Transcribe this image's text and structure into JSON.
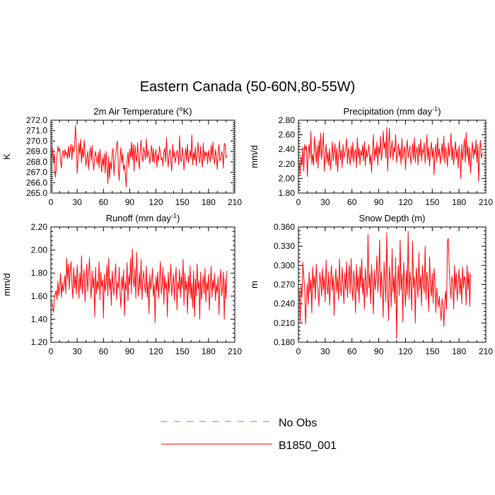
{
  "figure": {
    "title": "Eastern Canada (50-60N,80-55W)"
  },
  "legend": {
    "entries": [
      {
        "label": "No Obs",
        "color": "#7777ff",
        "style": "dashed"
      },
      {
        "label": "B1850_001",
        "color": "#ff0000",
        "style": "solid"
      }
    ]
  },
  "chart_data": [
    {
      "type": "line",
      "title": "2m Air Temperature (°K)",
      "title_main": "2m Air Temperature (",
      "title_sup": "o",
      "title_tail": "K)",
      "xlabel": "",
      "ylabel": "K",
      "xlim": [
        0,
        210
      ],
      "ylim": [
        265.0,
        272.0
      ],
      "xticks": [
        0,
        30,
        60,
        90,
        120,
        150,
        180,
        210
      ],
      "yticks": [
        265.0,
        266.0,
        267.0,
        268.0,
        269.0,
        270.0,
        271.0,
        272.0
      ],
      "ydecimals": 1,
      "series": [
        {
          "name": "B1850_001",
          "color": "#ff0000",
          "x_start": 1,
          "values": [
            268.4,
            269.3,
            267.9,
            268.8,
            266.5,
            267.2,
            268.6,
            269.5,
            269.0,
            269.3,
            268.1,
            267.4,
            268.9,
            269.1,
            268.4,
            269.2,
            268.7,
            268.9,
            268.3,
            269.5,
            268.4,
            269.1,
            269.7,
            268.2,
            269.6,
            268.9,
            269.4,
            271.5,
            269.9,
            266.9,
            268.3,
            269.8,
            268.7,
            270.2,
            267.9,
            269.3,
            268.4,
            270.1,
            268.8,
            267.6,
            268.3,
            269.0,
            267.3,
            268.6,
            269.4,
            268.1,
            269.6,
            268.0,
            267.2,
            268.5,
            269.0,
            268.3,
            267.8,
            268.9,
            267.4,
            269.2,
            268.1,
            267.0,
            268.4,
            267.6,
            268.8,
            266.9,
            269.0,
            267.8,
            265.9,
            268.5,
            266.4,
            268.0,
            267.3,
            268.9,
            269.3,
            266.7,
            268.1,
            268.6,
            269.6,
            270.0,
            267.4,
            266.2,
            268.3,
            269.4,
            267.9,
            268.8,
            267.2,
            267.7,
            266.8,
            265.6,
            268.2,
            268.9,
            267.5,
            269.2,
            268.4,
            269.9,
            268.2,
            269.7,
            267.1,
            269.6,
            268.5,
            268.0,
            269.8,
            268.3,
            267.3,
            269.0,
            270.1,
            268.7,
            268.0,
            269.4,
            268.9,
            268.2,
            270.2,
            268.4,
            269.1,
            268.6,
            267.8,
            268.9,
            269.6,
            268.0,
            269.3,
            267.9,
            268.6,
            269.2,
            267.5,
            268.7,
            268.1,
            269.5,
            268.9,
            268.2,
            268.4,
            267.6,
            268.9,
            269.3,
            268.0,
            270.3,
            268.5,
            267.5,
            268.8,
            269.2,
            268.1,
            267.1,
            269.7,
            268.4,
            269.0,
            267.9,
            268.5,
            269.1,
            268.8,
            267.7,
            270.5,
            268.3,
            268.0,
            269.4,
            268.6,
            267.2,
            268.4,
            269.3,
            268.1,
            269.7,
            267.9,
            268.5,
            269.1,
            268.3,
            270.6,
            267.7,
            268.9,
            268.2,
            269.4,
            267.6,
            268.7,
            269.9,
            268.4,
            267.9,
            269.5,
            268.2,
            267.5,
            269.8,
            268.1,
            269.0,
            268.6,
            268.9,
            267.8,
            269.1,
            268.5,
            268.0,
            269.6,
            268.3,
            269.9,
            268.4,
            267.8,
            269.2,
            268.5,
            267.3,
            268.8,
            269.7,
            268.1,
            268.3,
            269.0,
            268.7,
            267.4,
            269.8,
            269.6,
            268.4,
            268.6
          ]
        }
      ]
    },
    {
      "type": "line",
      "title": "Precipitation (mm day-1)",
      "title_main": "Precipitation (mm day",
      "title_sup": "-1",
      "title_tail": ")",
      "xlabel": "",
      "ylabel": "mm/d",
      "xlim": [
        0,
        210
      ],
      "ylim": [
        1.8,
        2.8
      ],
      "xticks": [
        0,
        30,
        60,
        90,
        120,
        150,
        180,
        210
      ],
      "yticks": [
        1.8,
        2.0,
        2.2,
        2.4,
        2.6,
        2.8
      ],
      "ydecimals": 2,
      "series": [
        {
          "name": "B1850_001",
          "color": "#ff0000",
          "x_start": 1,
          "values": [
            2.22,
            2.05,
            2.3,
            2.18,
            2.43,
            2.1,
            2.47,
            2.39,
            2.45,
            2.03,
            2.35,
            2.47,
            2.28,
            2.65,
            2.2,
            2.33,
            2.18,
            2.57,
            2.4,
            2.22,
            2.45,
            2.14,
            2.52,
            2.3,
            2.62,
            2.26,
            2.43,
            2.63,
            2.1,
            2.32,
            2.47,
            2.22,
            2.36,
            2.18,
            2.41,
            2.12,
            2.28,
            2.5,
            2.24,
            2.35,
            2.48,
            2.18,
            2.42,
            2.09,
            2.33,
            2.52,
            2.26,
            2.39,
            2.15,
            2.47,
            2.28,
            2.34,
            2.43,
            2.55,
            2.2,
            2.42,
            2.31,
            2.18,
            2.45,
            2.27,
            2.5,
            2.22,
            2.36,
            2.4,
            2.15,
            2.56,
            2.29,
            2.42,
            2.19,
            2.38,
            2.31,
            2.46,
            2.24,
            2.51,
            2.17,
            2.4,
            2.29,
            2.36,
            2.47,
            2.2,
            2.33,
            2.08,
            2.39,
            2.6,
            2.24,
            2.42,
            2.3,
            2.5,
            2.18,
            2.44,
            2.33,
            2.58,
            2.25,
            2.37,
            2.65,
            2.41,
            2.5,
            2.28,
            2.7,
            2.1,
            2.45,
            2.69,
            2.28,
            2.4,
            2.52,
            2.25,
            2.43,
            2.36,
            2.6,
            2.22,
            2.34,
            2.48,
            2.3,
            2.41,
            2.19,
            2.55,
            2.27,
            2.36,
            2.44,
            2.12,
            2.39,
            2.53,
            2.28,
            2.37,
            2.45,
            2.2,
            2.32,
            2.48,
            2.26,
            2.56,
            2.22,
            2.38,
            2.43,
            2.18,
            2.47,
            2.31,
            2.54,
            2.24,
            2.4,
            2.35,
            2.49,
            2.21,
            2.36,
            2.6,
            2.26,
            2.43,
            2.17,
            2.38,
            2.5,
            2.29,
            2.42,
            2.05,
            2.36,
            2.47,
            2.23,
            2.56,
            2.3,
            2.41,
            2.2,
            2.34,
            2.48,
            2.27,
            2.58,
            2.21,
            2.43,
            2.35,
            2.16,
            2.49,
            2.3,
            2.38,
            2.62,
            2.25,
            2.44,
            2.19,
            2.37,
            2.51,
            2.28,
            2.4,
            2.14,
            2.45,
            2.33,
            2.0,
            2.47,
            2.25,
            2.39,
            2.55,
            2.22,
            2.63,
            2.3,
            2.45,
            2.18,
            2.42,
            2.07,
            2.36,
            2.5,
            2.27,
            2.41,
            2.33,
            2.53,
            2.22,
            2.47,
            1.96,
            2.38,
            2.52,
            2.28,
            2.34,
            2.35
          ]
        }
      ]
    },
    {
      "type": "line",
      "title": "Runoff (mm day-1)",
      "title_main": "Runoff (mm day",
      "title_sup": "-1",
      "title_tail": ")",
      "xlabel": "",
      "ylabel": "mm/d",
      "xlim": [
        0,
        210
      ],
      "ylim": [
        1.2,
        2.2
      ],
      "xticks": [
        0,
        30,
        60,
        90,
        120,
        150,
        180,
        210
      ],
      "yticks": [
        1.2,
        1.4,
        1.6,
        1.8,
        2.0,
        2.2
      ],
      "ydecimals": 2,
      "series": [
        {
          "name": "B1850_001",
          "color": "#ff0000",
          "x_start": 1,
          "values": [
            1.55,
            1.5,
            1.46,
            1.58,
            1.62,
            1.65,
            1.57,
            1.73,
            1.61,
            1.68,
            1.8,
            1.59,
            1.72,
            1.64,
            1.7,
            1.78,
            1.62,
            1.93,
            1.75,
            1.88,
            1.66,
            1.82,
            1.9,
            1.7,
            1.58,
            1.85,
            1.67,
            1.78,
            1.62,
            1.87,
            1.73,
            1.58,
            1.8,
            1.66,
            1.95,
            1.62,
            1.75,
            1.83,
            1.55,
            1.72,
            1.88,
            1.64,
            1.78,
            1.93,
            1.7,
            1.58,
            1.82,
            1.67,
            1.76,
            1.42,
            1.85,
            1.62,
            1.73,
            1.66,
            1.9,
            1.57,
            1.81,
            1.68,
            1.74,
            1.41,
            1.79,
            1.64,
            1.71,
            1.87,
            1.6,
            1.93,
            1.66,
            1.75,
            1.52,
            1.82,
            1.69,
            1.61,
            1.78,
            1.88,
            1.57,
            1.72,
            1.67,
            1.85,
            1.62,
            1.5,
            1.77,
            1.66,
            1.83,
            1.43,
            1.72,
            1.65,
            1.89,
            1.56,
            1.78,
            1.7,
            1.93,
            1.62,
            2.01,
            1.75,
            1.68,
            1.84,
            1.58,
            1.98,
            1.71,
            1.6,
            1.8,
            1.66,
            1.92,
            1.57,
            1.74,
            1.82,
            1.69,
            1.63,
            1.86,
            1.59,
            1.72,
            1.45,
            1.79,
            1.66,
            1.73,
            1.84,
            1.6,
            1.7,
            1.37,
            1.77,
            1.65,
            1.81,
            1.58,
            1.74,
            1.9,
            1.62,
            1.69,
            1.85,
            1.53,
            1.78,
            1.66,
            1.72,
            1.42,
            1.81,
            1.63,
            1.75,
            1.88,
            1.6,
            1.7,
            1.79,
            1.56,
            1.74,
            1.85,
            1.48,
            1.72,
            1.66,
            1.83,
            1.59,
            1.77,
            1.67,
            1.92,
            1.52,
            1.8,
            1.65,
            1.73,
            1.45,
            1.78,
            1.62,
            1.86,
            1.58,
            1.71,
            1.5,
            1.82,
            1.42,
            1.75,
            1.6,
            1.88,
            1.66,
            1.73,
            1.4,
            1.81,
            1.57,
            1.69,
            1.78,
            1.62,
            1.84,
            1.55,
            1.72,
            1.65,
            1.79,
            1.48,
            1.68,
            1.86,
            1.59,
            1.74,
            1.66,
            1.8,
            1.56,
            1.7,
            1.63,
            1.77,
            1.44,
            1.72,
            1.83,
            1.6,
            1.67,
            1.81,
            1.4,
            1.75,
            1.58,
            1.82
          ]
        }
      ]
    },
    {
      "type": "line",
      "title": "Snow Depth (m)",
      "title_main": "Snow Depth (m)",
      "title_sup": "",
      "title_tail": "",
      "xlabel": "",
      "ylabel": "m",
      "xlim": [
        0,
        210
      ],
      "ylim": [
        0.18,
        0.36
      ],
      "xticks": [
        0,
        30,
        60,
        90,
        120,
        150,
        180,
        210
      ],
      "yticks": [
        0.18,
        0.21,
        0.24,
        0.27,
        0.3,
        0.33,
        0.36
      ],
      "ydecimals": 3,
      "series": [
        {
          "name": "B1850_001",
          "color": "#ff0000",
          "x_start": 1,
          "values": [
            0.262,
            0.21,
            0.268,
            0.25,
            0.305,
            0.282,
            0.265,
            0.208,
            0.248,
            0.271,
            0.239,
            0.29,
            0.258,
            0.278,
            0.226,
            0.298,
            0.265,
            0.283,
            0.247,
            0.302,
            0.271,
            0.26,
            0.236,
            0.289,
            0.274,
            0.252,
            0.296,
            0.262,
            0.281,
            0.243,
            0.308,
            0.268,
            0.255,
            0.29,
            0.238,
            0.276,
            0.3,
            0.261,
            0.284,
            0.222,
            0.272,
            0.295,
            0.258,
            0.281,
            0.246,
            0.31,
            0.265,
            0.253,
            0.297,
            0.27,
            0.24,
            0.288,
            0.262,
            0.306,
            0.25,
            0.279,
            0.3,
            0.256,
            0.311,
            0.268,
            0.245,
            0.292,
            0.273,
            0.226,
            0.302,
            0.26,
            0.284,
            0.242,
            0.298,
            0.266,
            0.31,
            0.255,
            0.28,
            0.232,
            0.296,
            0.271,
            0.251,
            0.349,
            0.265,
            0.287,
            0.24,
            0.301,
            0.27,
            0.224,
            0.293,
            0.262,
            0.279,
            0.315,
            0.258,
            0.283,
            0.34,
            0.25,
            0.29,
            0.267,
            0.219,
            0.305,
            0.275,
            0.243,
            0.351,
            0.262,
            0.214,
            0.298,
            0.276,
            0.235,
            0.326,
            0.258,
            0.283,
            0.241,
            0.312,
            0.186,
            0.27,
            0.3,
            0.253,
            0.34,
            0.262,
            0.287,
            0.212,
            0.305,
            0.268,
            0.236,
            0.293,
            0.254,
            0.353,
            0.247,
            0.29,
            0.273,
            0.23,
            0.338,
            0.265,
            0.282,
            0.21,
            0.296,
            0.276,
            0.25,
            0.32,
            0.262,
            0.284,
            0.237,
            0.3,
            0.27,
            0.257,
            0.33,
            0.246,
            0.289,
            0.275,
            0.228,
            0.313,
            0.269,
            0.252,
            0.288,
            0.241,
            0.295,
            0.277,
            0.226,
            0.265,
            0.246,
            0.236,
            0.252,
            0.229,
            0.214,
            0.248,
            0.238,
            0.205,
            0.242,
            0.26,
            0.231,
            0.339,
            0.342,
            0.296,
            0.265,
            0.248,
            0.283,
            0.274,
            0.232,
            0.3,
            0.262,
            0.288,
            0.245,
            0.271,
            0.294,
            0.255,
            0.28,
            0.24,
            0.297,
            0.265,
            0.283,
            0.276,
            0.238,
            0.3,
            0.262,
            0.29,
            0.236,
            0.287
          ]
        }
      ]
    }
  ]
}
